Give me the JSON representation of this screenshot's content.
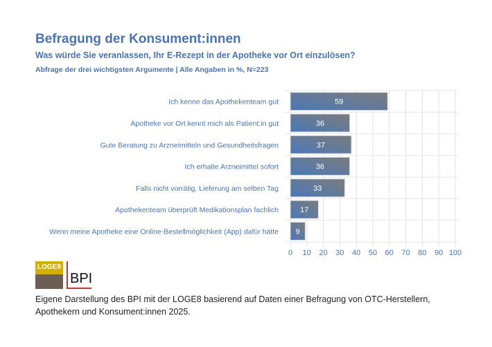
{
  "header": {
    "title": "Befragung der Konsument:innen",
    "subtitle": "Was würde Sie veranlassen, Ihr E-Rezept in der Apotheke vor Ort einzulösen?",
    "note": "Abfrage der drei wichtigsten Argumente | Alle Angaben in %, N=223"
  },
  "chart_data": {
    "type": "bar",
    "orientation": "horizontal",
    "categories": [
      "Ich kenne das Apothekenteam gut",
      "Apotheke vor Ort kennt mich als Patient:in gut",
      "Gute Beratung zu Arzneimitteln und Gesundheitsfragen",
      "Ich erhalte Arzneimittel sofort",
      "Falls nicht vorrätig, Lieferung am selben Tag",
      "Apothekenteam überprüft Medikationsplan fachlich",
      "Wenn meine Apotheke eine Online-Bestellmöglichkeit (App) dafür hätte"
    ],
    "values": [
      59,
      36,
      37,
      36,
      33,
      17,
      9
    ],
    "xlim": [
      0,
      100
    ],
    "xticks": [
      "0",
      "10",
      "20",
      "30",
      "40",
      "50",
      "60",
      "70",
      "80",
      "90",
      "100"
    ],
    "grid": true,
    "bar_colors": [
      "#4a78b8",
      "#7c7c7c"
    ],
    "text_color": "#4a74ad"
  },
  "logos": {
    "loge8": "LOGE8",
    "bpi": "BPI"
  },
  "footer": "Eigene Darstellung des BPI mit der LOGE8 basierend auf Daten einer Befragung von OTC-Herstellern, Apothekern und Konsument:innen 2025."
}
